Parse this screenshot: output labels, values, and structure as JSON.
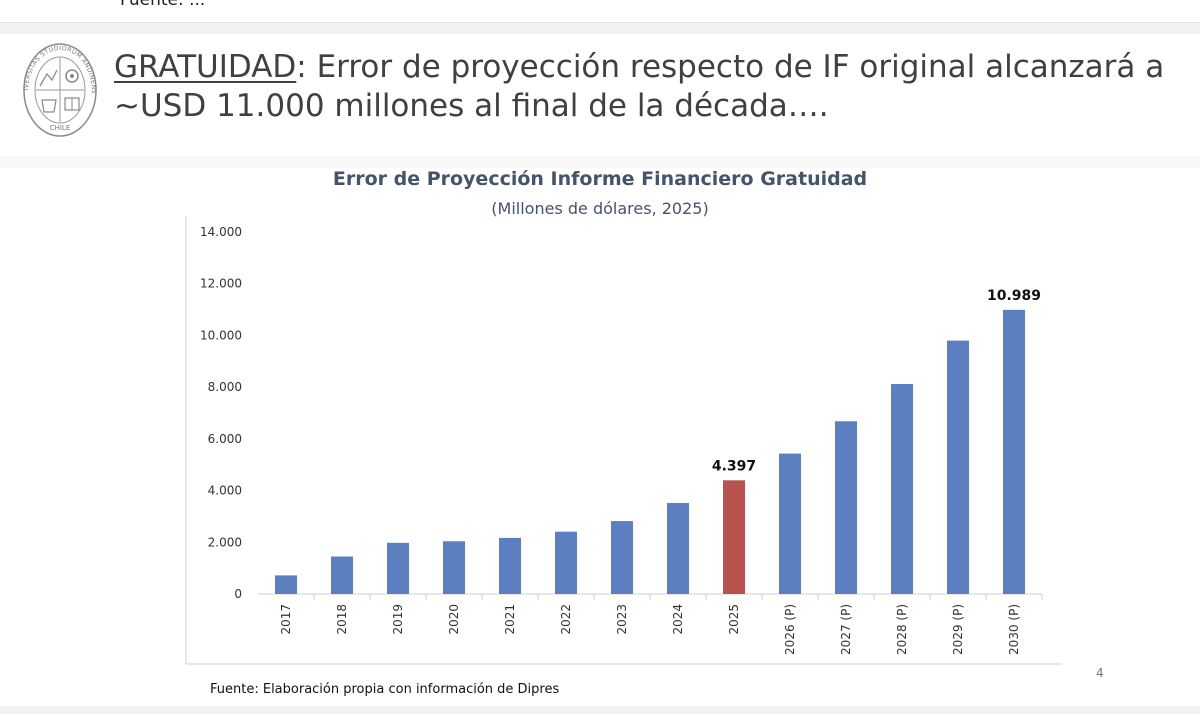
{
  "previous_slide": {
    "cut_text": "Fuente: ..."
  },
  "slide": {
    "title_keyword": "GRATUIDAD",
    "title_rest": ": Error de proyección respecto de IF original alcanzará a ~USD 11.000 millones al final de la década….",
    "source": "Fuente: Elaboración propia con información de Dipres",
    "page_number": "4",
    "seal": {
      "top_text": "UNIVERSITAS STUDIORUM ANDINENSIS",
      "bottom_text": "CHILE"
    }
  },
  "chart_data": {
    "type": "bar",
    "title": "Error de Proyección Informe Financiero Gratuidad",
    "subtitle": "(Millones de dólares, 2025)",
    "categories": [
      "2017",
      "2018",
      "2019",
      "2020",
      "2021",
      "2022",
      "2023",
      "2024",
      "2025",
      "2026 (P)",
      "2027 (P)",
      "2028 (P)",
      "2029 (P)",
      "2030 (P)"
    ],
    "values": [
      720,
      1450,
      1980,
      2040,
      2170,
      2410,
      2820,
      3520,
      4397,
      5430,
      6680,
      8120,
      9800,
      10989
    ],
    "data_labels": [
      {
        "index": 8,
        "text": "4.397"
      },
      {
        "index": 13,
        "text": "10.989"
      }
    ],
    "highlight_index": 8,
    "ylim": [
      0,
      14000
    ],
    "yticks": [
      0,
      2000,
      4000,
      6000,
      8000,
      10000,
      12000,
      14000
    ],
    "ytick_labels": [
      "0",
      "2.000",
      "4.000",
      "6.000",
      "8.000",
      "10.000",
      "12.000",
      "14.000"
    ],
    "xlabel": "",
    "ylabel": "",
    "grid": false,
    "legend": "none",
    "colors": {
      "bar": "#5b7fbf",
      "highlight": "#b85450",
      "axis": "#cfcfcf"
    }
  }
}
